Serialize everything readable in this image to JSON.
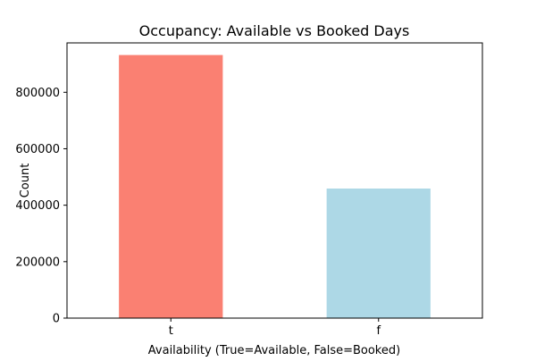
{
  "chart_data": {
    "type": "bar",
    "title": "Occupancy: Available vs Booked Days",
    "xlabel": "Availability (True=Available, False=Booked)",
    "ylabel": "Count",
    "categories": [
      "t",
      "f"
    ],
    "values": [
      932000,
      459000
    ],
    "colors": [
      "#fa8072",
      "#add8e6"
    ],
    "ylim": [
      0,
      975000
    ],
    "yticks": [
      0,
      200000,
      400000,
      600000,
      800000
    ],
    "ytick_labels": [
      "0",
      "200000",
      "400000",
      "600000",
      "800000"
    ],
    "grid": false,
    "legend": "none"
  }
}
